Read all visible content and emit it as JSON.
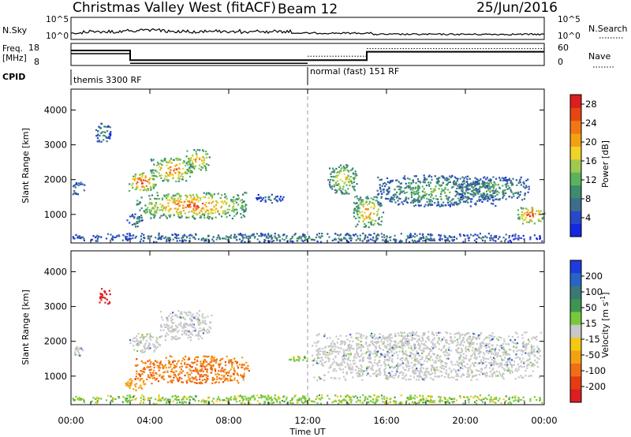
{
  "header": {
    "station": "Christmas Valley West (fitACF)",
    "beam": "Beam 12",
    "date": "25/Jun/2016"
  },
  "strip": {
    "nsky_label": "N.Sky",
    "nsky_ticks": [
      "10^5",
      "10^0"
    ],
    "nsearch_label": "N.Search",
    "nsearch_ticks": [
      "10^5",
      "10^0"
    ],
    "freq_label_1": "Freq.",
    "freq_label_2": "[MHz]",
    "freq_ticks": [
      "18",
      "8"
    ],
    "nave_label": "Nave",
    "nave_ticks": [
      "60",
      "0"
    ],
    "cpid_label": "CPID",
    "cpid_segments": [
      {
        "start_hour": 0,
        "label": "themis 3300 RF"
      },
      {
        "start_hour": 12,
        "label": "normal (fast) 151 RF"
      }
    ],
    "freq_steps": [
      {
        "from_hour": 0,
        "to_hour": 3,
        "mhz": 14.8
      },
      {
        "from_hour": 3,
        "to_hour": 12,
        "mhz": 10.4
      },
      {
        "from_hour": 12,
        "to_hour": 15,
        "mhz": 10.4
      },
      {
        "from_hour": 15,
        "to_hour": 24,
        "mhz": 14.2
      }
    ]
  },
  "chart_data": [
    {
      "type": "heatmap",
      "name": "power",
      "ylabel": "Slant Range [km]",
      "xlabel": "Time UT",
      "xlim_hours": [
        0,
        24
      ],
      "x_ticks": [
        "00:00",
        "04:00",
        "08:00",
        "12:00",
        "16:00",
        "20:00",
        "00:00"
      ],
      "ylim_km": [
        180,
        4600
      ],
      "y_ticks": [
        1000,
        2000,
        3000,
        4000
      ],
      "colorbar": {
        "label": "Power [dB]",
        "ticks": [
          4,
          8,
          12,
          16,
          20,
          24,
          28
        ],
        "range": [
          0,
          30
        ],
        "colors": [
          "#1428e0",
          "#2848c8",
          "#3c6e8c",
          "#3c8c6e",
          "#5ab45a",
          "#a0c850",
          "#f0d228",
          "#f5a014",
          "#f07814",
          "#e64614",
          "#dc1e1e"
        ]
      },
      "regions": [
        {
          "t0": 2.9,
          "t1": 4.3,
          "r0": 1680,
          "r1": 2220,
          "level": 26
        },
        {
          "t0": 4.0,
          "t1": 6.2,
          "r0": 1950,
          "r1": 2650,
          "level": 22
        },
        {
          "t0": 5.8,
          "t1": 7.0,
          "r0": 2280,
          "r1": 2880,
          "level": 21
        },
        {
          "t0": 3.3,
          "t1": 9.0,
          "r0": 900,
          "r1": 1650,
          "level": 22
        },
        {
          "t0": 2.8,
          "t1": 3.6,
          "r0": 650,
          "r1": 1050,
          "level": 10
        },
        {
          "t0": 0.0,
          "t1": 0.7,
          "r0": 1580,
          "r1": 1950,
          "level": 10
        },
        {
          "t0": 1.2,
          "t1": 2.0,
          "r0": 3050,
          "r1": 3650,
          "level": 9
        },
        {
          "t0": 9.3,
          "t1": 10.8,
          "r0": 1350,
          "r1": 1600,
          "level": 6
        },
        {
          "t0": 13.0,
          "t1": 14.5,
          "r0": 1600,
          "r1": 2450,
          "level": 17
        },
        {
          "t0": 14.3,
          "t1": 15.8,
          "r0": 650,
          "r1": 1550,
          "level": 20
        },
        {
          "t0": 15.5,
          "t1": 21.5,
          "r0": 1250,
          "r1": 2150,
          "level": 12
        },
        {
          "t0": 19.5,
          "t1": 23.2,
          "r0": 1400,
          "r1": 2100,
          "level": 11
        },
        {
          "t0": 22.6,
          "t1": 24.0,
          "r0": 750,
          "r1": 1250,
          "level": 25
        },
        {
          "t0": 0.0,
          "t1": 24.0,
          "r0": 230,
          "r1": 480,
          "level": 9
        }
      ]
    },
    {
      "type": "heatmap",
      "name": "velocity",
      "ylabel": "Slant Range [km]",
      "xlabel": "Time UT",
      "xlim_hours": [
        0,
        24
      ],
      "x_ticks": [
        "00:00",
        "04:00",
        "08:00",
        "12:00",
        "16:00",
        "20:00",
        "00:00"
      ],
      "ylim_km": [
        180,
        4600
      ],
      "y_ticks": [
        1000,
        2000,
        3000,
        4000
      ],
      "colorbar": {
        "label": "Velocity [m s^-1]",
        "ticks": [
          "200",
          "100",
          "50",
          "15",
          "-15",
          "-50",
          "-100",
          "-200"
        ],
        "colors": [
          "#1e3cdc",
          "#2864c8",
          "#3c7878",
          "#3c9650",
          "#78c83c",
          "#c8c8c8",
          "#f5c814",
          "#f5a014",
          "#f06e14",
          "#e63c14",
          "#dc1e1e"
        ]
      },
      "regions": [
        {
          "t0": 2.9,
          "t1": 4.5,
          "r0": 1700,
          "r1": 2250,
          "level": "ground"
        },
        {
          "t0": 4.5,
          "t1": 7.1,
          "r0": 2050,
          "r1": 2900,
          "level": "ground"
        },
        {
          "t0": 3.2,
          "t1": 9.0,
          "r0": 800,
          "r1": 1600,
          "level": "orange"
        },
        {
          "t0": 2.7,
          "t1": 3.8,
          "r0": 600,
          "r1": 1000,
          "level": "lightorange"
        },
        {
          "t0": 0.0,
          "t1": 0.6,
          "r0": 1600,
          "r1": 1900,
          "level": "ground"
        },
        {
          "t0": 1.4,
          "t1": 2.0,
          "r0": 3100,
          "r1": 3550,
          "level": "red"
        },
        {
          "t0": 12.2,
          "t1": 23.8,
          "r0": 900,
          "r1": 2300,
          "level": "ground"
        },
        {
          "t0": 11.0,
          "t1": 12.5,
          "r0": 1450,
          "r1": 1600,
          "level": "green"
        },
        {
          "t0": 0.0,
          "t1": 24.0,
          "r0": 230,
          "r1": 480,
          "level": "green"
        }
      ]
    }
  ]
}
